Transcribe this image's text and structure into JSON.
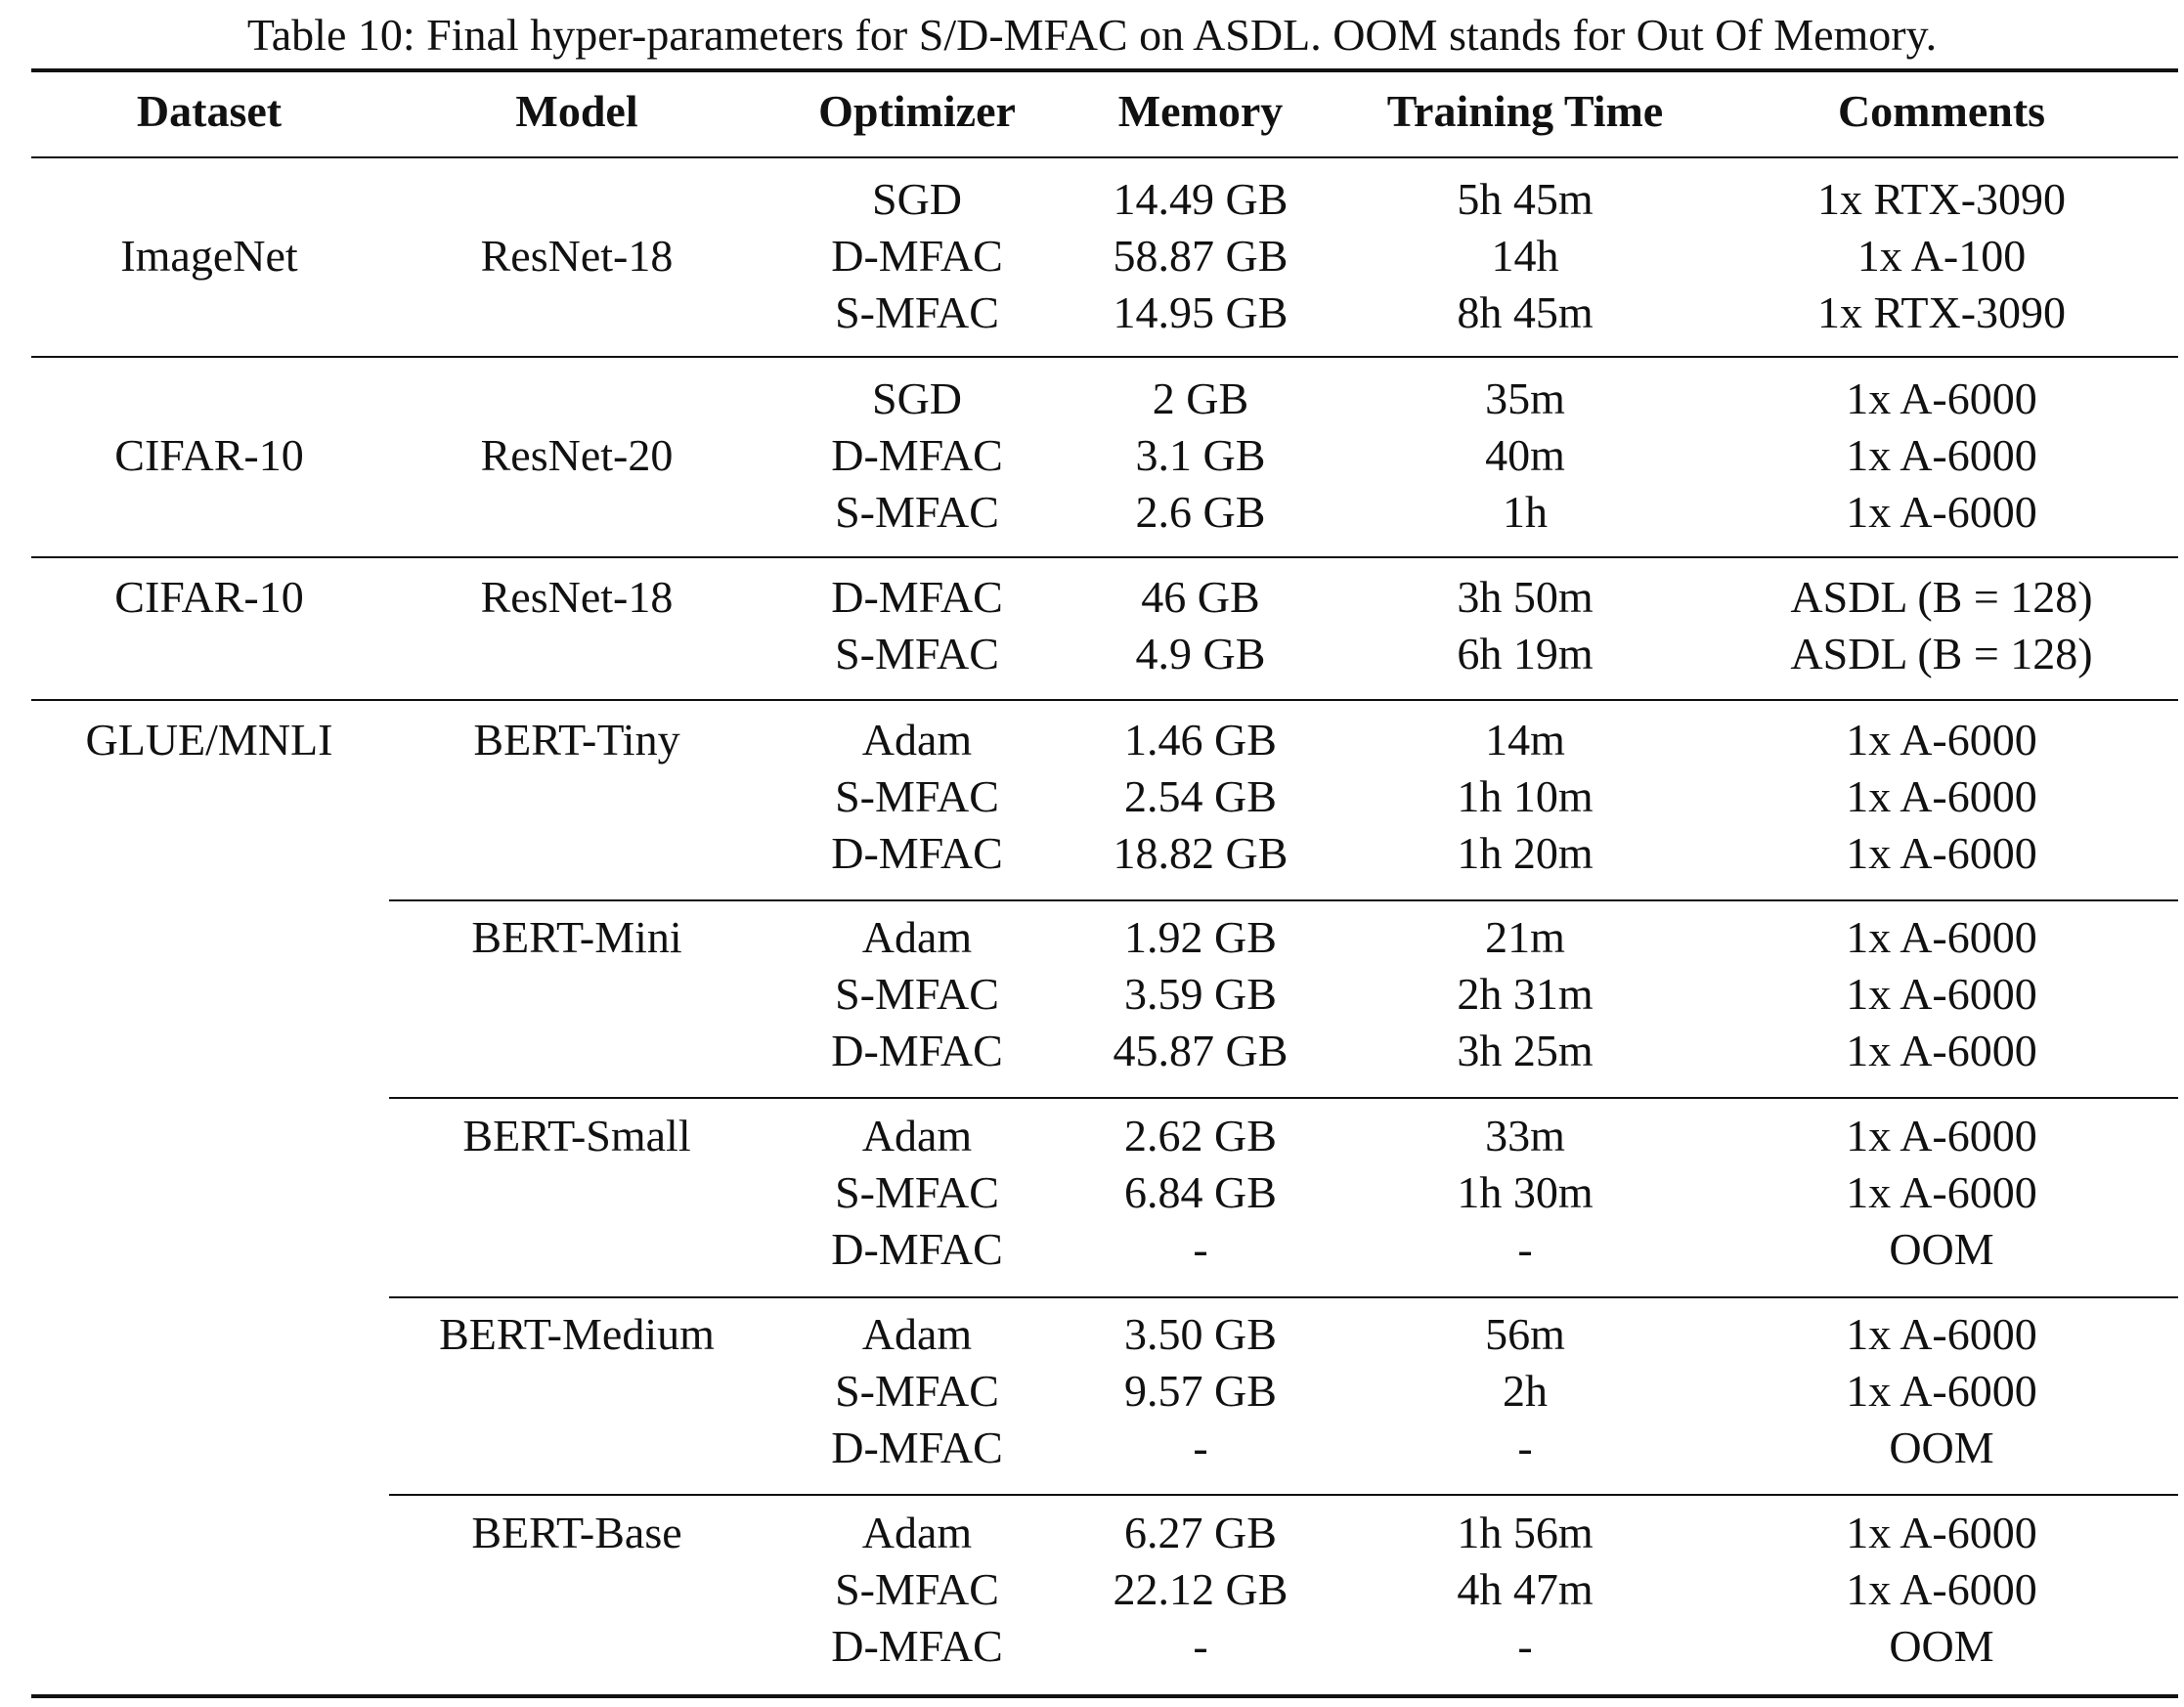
{
  "caption": "Table 10:  Final hyper-parameters for S/D-MFAC on ASDL. OOM stands for Out Of Memory.",
  "headers": [
    "Dataset",
    "Model",
    "Optimizer",
    "Memory",
    "Training Time",
    "Comments"
  ],
  "rows": [
    [
      "",
      "",
      "SGD",
      "14.49 GB",
      "5h 45m",
      "1x RTX-3090"
    ],
    [
      "ImageNet",
      "ResNet-18",
      "D-MFAC",
      "58.87 GB",
      "14h",
      "1x A-100"
    ],
    [
      "",
      "",
      "S-MFAC",
      "14.95 GB",
      "8h 45m",
      "1x RTX-3090"
    ],
    [
      "",
      "",
      "SGD",
      "2 GB",
      "35m",
      "1x A-6000"
    ],
    [
      "CIFAR-10",
      "ResNet-20",
      "D-MFAC",
      "3.1 GB",
      "40m",
      "1x A-6000"
    ],
    [
      "",
      "",
      "S-MFAC",
      "2.6 GB",
      "1h",
      "1x A-6000"
    ],
    [
      "CIFAR-10",
      "ResNet-18",
      "D-MFAC",
      "46 GB",
      "3h 50m",
      "ASDL (B = 128)"
    ],
    [
      "",
      "",
      "S-MFAC",
      "4.9 GB",
      "6h 19m",
      "ASDL (B = 128)"
    ],
    [
      "GLUE/MNLI",
      "BERT-Tiny",
      "Adam",
      "1.46 GB",
      "14m",
      "1x A-6000"
    ],
    [
      "",
      "",
      "S-MFAC",
      "2.54 GB",
      "1h 10m",
      "1x A-6000"
    ],
    [
      "",
      "",
      "D-MFAC",
      "18.82 GB",
      "1h 20m",
      "1x A-6000"
    ],
    [
      "",
      "BERT-Mini",
      "Adam",
      "1.92 GB",
      "21m",
      "1x A-6000"
    ],
    [
      "",
      "",
      "S-MFAC",
      "3.59 GB",
      "2h 31m",
      "1x A-6000"
    ],
    [
      "",
      "",
      "D-MFAC",
      "45.87 GB",
      "3h 25m",
      "1x A-6000"
    ],
    [
      "",
      "BERT-Small",
      "Adam",
      "2.62 GB",
      "33m",
      "1x A-6000"
    ],
    [
      "",
      "",
      "S-MFAC",
      "6.84 GB",
      "1h 30m",
      "1x A-6000"
    ],
    [
      "",
      "",
      "D-MFAC",
      "-",
      "-",
      "OOM"
    ],
    [
      "",
      "BERT-Medium",
      "Adam",
      "3.50 GB",
      "56m",
      "1x A-6000"
    ],
    [
      "",
      "",
      "S-MFAC",
      "9.57 GB",
      "2h",
      "1x A-6000"
    ],
    [
      "",
      "",
      "D-MFAC",
      "-",
      "-",
      "OOM"
    ],
    [
      "",
      "BERT-Base",
      "Adam",
      "6.27 GB",
      "1h 56m",
      "1x A-6000"
    ],
    [
      "",
      "",
      "S-MFAC",
      "22.12 GB",
      "4h 47m",
      "1x A-6000"
    ],
    [
      "",
      "",
      "D-MFAC",
      "-",
      "-",
      "OOM"
    ]
  ]
}
